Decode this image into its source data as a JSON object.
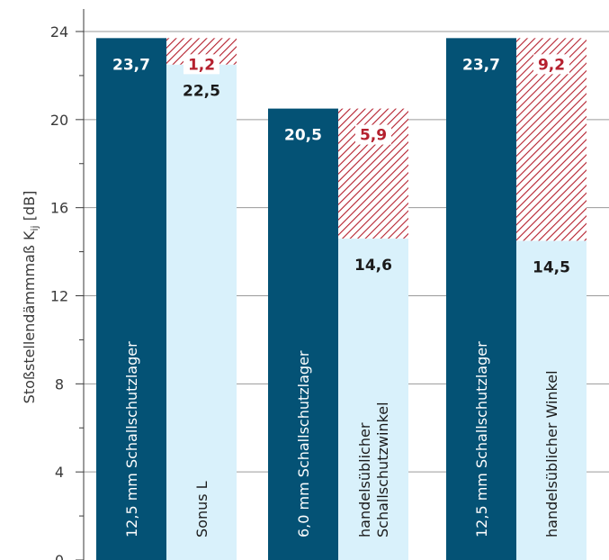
{
  "chart_data": {
    "type": "bar",
    "ylabel_main": "Stoßstellendämmmaß K",
    "ylabel_sub": "ij",
    "ylabel_unit": " [dB]",
    "ylim": [
      0,
      24
    ],
    "yticks": [
      "0",
      "4",
      "8",
      "12",
      "16",
      "20",
      "24"
    ],
    "grid": true,
    "groups": [
      {
        "bars": [
          {
            "label": "12,5 mm Schallschutzlager",
            "value": 23.7,
            "value_label": "23,7",
            "kind": "dark"
          },
          {
            "label": "Sonus L",
            "value": 22.5,
            "value_label": "22,5",
            "kind": "light",
            "difference": 1.2,
            "difference_label": "1,2"
          }
        ]
      },
      {
        "bars": [
          {
            "label": "6,0 mm Schallschutzlager",
            "value": 20.5,
            "value_label": "20,5",
            "kind": "dark"
          },
          {
            "label": "handelsüblicher Schallschutzwinkel",
            "label_lines": [
              "handelsüblicher",
              "Schallschutzwinkel"
            ],
            "value": 14.6,
            "value_label": "14,6",
            "kind": "light",
            "difference": 5.9,
            "difference_label": "5,9"
          }
        ]
      },
      {
        "bars": [
          {
            "label": "12,5 mm Schallschutzlager",
            "value": 23.7,
            "value_label": "23,7",
            "kind": "dark"
          },
          {
            "label": "handelsüblicher Winkel",
            "value": 14.5,
            "value_label": "14,5",
            "kind": "light",
            "difference": 9.2,
            "difference_label": "9,2"
          }
        ]
      }
    ],
    "colors": {
      "dark": "#045275",
      "light": "#d9f1fb",
      "hatch": "#b5202e",
      "difference_text": "#b5202e",
      "grid": "#9a9a9a",
      "axis": "#3a3a3a"
    }
  }
}
